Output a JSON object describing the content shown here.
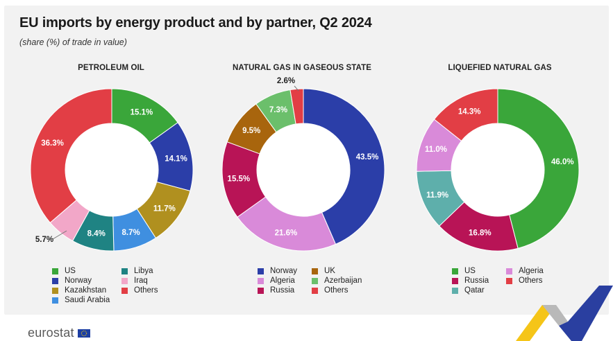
{
  "title": "EU imports by energy product and by partner, Q2 2024",
  "subtitle": "(share (%) of trade in value)",
  "branding": {
    "logo_text": "eurostat"
  },
  "chart_data": [
    {
      "type": "pie",
      "title": "PETROLEUM OIL",
      "series": [
        {
          "name": "US",
          "value": 15.1,
          "label": "15.1%",
          "color": "#3aa63a"
        },
        {
          "name": "Norway",
          "value": 14.1,
          "label": "14.1%",
          "color": "#2b3ea8"
        },
        {
          "name": "Kazakhstan",
          "value": 11.7,
          "label": "11.7%",
          "color": "#b0901f"
        },
        {
          "name": "Saudi Arabia",
          "value": 8.7,
          "label": "8.7%",
          "color": "#3f8fe0"
        },
        {
          "name": "Libya",
          "value": 8.4,
          "label": "8.4%",
          "color": "#1f8383"
        },
        {
          "name": "Iraq",
          "value": 5.7,
          "label": "5.7%",
          "color": "#f2a7c8"
        },
        {
          "name": "Others",
          "value": 36.3,
          "label": "36.3%",
          "color": "#e23e45"
        }
      ]
    },
    {
      "type": "pie",
      "title": "NATURAL GAS IN GASEOUS STATE",
      "series": [
        {
          "name": "Norway",
          "value": 43.5,
          "label": "43.5%",
          "color": "#2b3ea8"
        },
        {
          "name": "Algeria",
          "value": 21.6,
          "label": "21.6%",
          "color": "#d98ad9"
        },
        {
          "name": "Russia",
          "value": 15.5,
          "label": "15.5%",
          "color": "#b81456"
        },
        {
          "name": "UK",
          "value": 9.5,
          "label": "9.5%",
          "color": "#a8650d"
        },
        {
          "name": "Azerbaijan",
          "value": 7.3,
          "label": "7.3%",
          "color": "#6bbf6b"
        },
        {
          "name": "Others",
          "value": 2.6,
          "label": "2.6%",
          "color": "#e23e45"
        }
      ]
    },
    {
      "type": "pie",
      "title": "LIQUEFIED NATURAL GAS",
      "series": [
        {
          "name": "US",
          "value": 46.0,
          "label": "46.0%",
          "color": "#3aa63a"
        },
        {
          "name": "Russia",
          "value": 16.8,
          "label": "16.8%",
          "color": "#b81456"
        },
        {
          "name": "Qatar",
          "value": 11.9,
          "label": "11.9%",
          "color": "#5eafab"
        },
        {
          "name": "Algeria",
          "value": 11.0,
          "label": "11.0%",
          "color": "#d98ad9"
        },
        {
          "name": "Others",
          "value": 14.3,
          "label": "14.3%",
          "color": "#e23e45"
        }
      ]
    }
  ]
}
